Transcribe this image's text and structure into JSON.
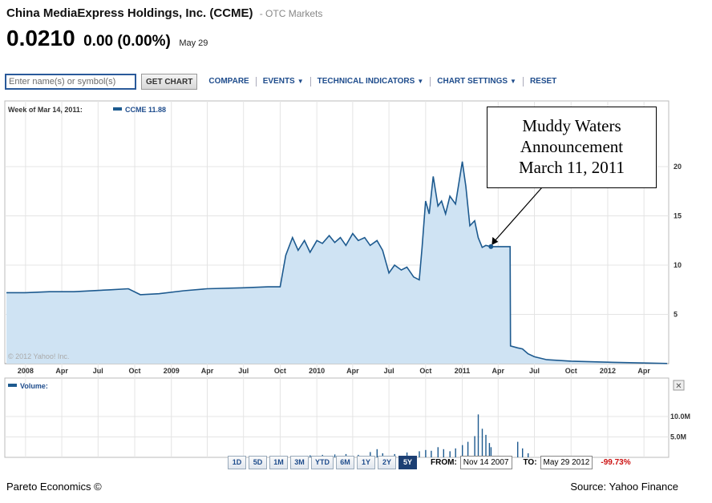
{
  "header": {
    "company": "China MediaExpress Holdings, Inc. (CCME)",
    "exchange": "- OTC Markets",
    "price": "0.0210",
    "change": "0.00 (0.00%)",
    "date": "May 29"
  },
  "toolbar": {
    "search_placeholder": "Enter name(s) or symbol(s)",
    "get_chart": "GET CHART",
    "compare": "COMPARE",
    "events": "EVENTS",
    "technical_indicators": "TECHNICAL INDICATORS",
    "chart_settings": "CHART SETTINGS",
    "reset": "RESET"
  },
  "chart": {
    "hover_label": "Week of Mar 14, 2011:",
    "legend": "CCME 11.88",
    "copyright": "© 2012 Yahoo! Inc.",
    "volume_label": "Volume:",
    "annotation": [
      "Muddy Waters",
      "Announcement",
      "March 11, 2011"
    ]
  },
  "chart_data": {
    "type": "area",
    "series": [
      {
        "name": "CCME",
        "x": [
          "2007-11-14",
          "2008-01-01",
          "2008-03-01",
          "2008-05-01",
          "2008-08-01",
          "2008-09-15",
          "2008-10-15",
          "2008-12-01",
          "2009-02-01",
          "2009-04-01",
          "2009-07-01",
          "2009-09-01",
          "2009-10-01",
          "2009-10-15",
          "2009-11-01",
          "2009-11-15",
          "2009-12-01",
          "2009-12-15",
          "2010-01-01",
          "2010-01-15",
          "2010-02-01",
          "2010-02-15",
          "2010-03-01",
          "2010-03-15",
          "2010-04-01",
          "2010-04-15",
          "2010-05-01",
          "2010-05-15",
          "2010-06-01",
          "2010-06-15",
          "2010-07-01",
          "2010-07-15",
          "2010-08-01",
          "2010-08-15",
          "2010-09-01",
          "2010-09-15",
          "2010-09-22",
          "2010-10-01",
          "2010-10-10",
          "2010-10-20",
          "2010-11-01",
          "2010-11-10",
          "2010-11-20",
          "2010-12-01",
          "2010-12-15",
          "2011-01-01",
          "2011-01-10",
          "2011-01-20",
          "2011-02-01",
          "2011-02-10",
          "2011-02-20",
          "2011-03-01",
          "2011-03-14",
          "2011-04-01",
          "2011-05-01",
          "2011-05-02",
          "2011-05-20",
          "2011-06-01",
          "2011-06-15",
          "2011-07-01",
          "2011-08-01",
          "2011-10-01",
          "2012-01-01",
          "2012-05-29"
        ],
        "values": [
          7.2,
          7.2,
          7.3,
          7.3,
          7.5,
          7.6,
          7.0,
          7.1,
          7.4,
          7.6,
          7.7,
          7.8,
          7.8,
          11.0,
          12.8,
          11.5,
          12.5,
          11.3,
          12.5,
          12.2,
          13.0,
          12.3,
          12.8,
          12.0,
          13.2,
          12.5,
          12.8,
          12.0,
          12.5,
          11.5,
          9.2,
          10.0,
          9.5,
          9.8,
          8.8,
          8.5,
          11.8,
          16.5,
          15.2,
          19.0,
          16.0,
          16.5,
          15.2,
          17.0,
          16.2,
          20.5,
          18.0,
          14.0,
          14.5,
          12.8,
          11.8,
          12.0,
          11.88,
          11.88,
          11.88,
          1.8,
          1.6,
          1.5,
          1.0,
          0.7,
          0.4,
          0.25,
          0.15,
          0.02
        ]
      }
    ],
    "x_ticks": [
      "2008",
      "Apr",
      "Jul",
      "Oct",
      "2009",
      "Apr",
      "Jul",
      "Oct",
      "2010",
      "Apr",
      "Jul",
      "Oct",
      "2011",
      "Apr",
      "Jul",
      "Oct",
      "2012",
      "Apr"
    ],
    "y_ticks": [
      "5",
      "10",
      "15",
      "20"
    ],
    "ylim": [
      0,
      26
    ],
    "volume": {
      "y_ticks": [
        "5.0M",
        "10.0M"
      ],
      "bars": [
        {
          "x": "2009-10-15",
          "v": 0.3
        },
        {
          "x": "2009-11-15",
          "v": 0.4
        },
        {
          "x": "2009-12-15",
          "v": 0.5
        },
        {
          "x": "2010-01-15",
          "v": 0.6
        },
        {
          "x": "2010-02-15",
          "v": 0.7
        },
        {
          "x": "2010-03-15",
          "v": 0.8
        },
        {
          "x": "2010-04-15",
          "v": 0.6
        },
        {
          "x": "2010-05-15",
          "v": 1.3
        },
        {
          "x": "2010-06-01",
          "v": 2.0
        },
        {
          "x": "2010-06-15",
          "v": 1.0
        },
        {
          "x": "2010-07-15",
          "v": 0.8
        },
        {
          "x": "2010-08-15",
          "v": 1.2
        },
        {
          "x": "2010-09-15",
          "v": 1.5
        },
        {
          "x": "2010-10-01",
          "v": 1.8
        },
        {
          "x": "2010-10-15",
          "v": 1.6
        },
        {
          "x": "2010-11-01",
          "v": 2.5
        },
        {
          "x": "2010-11-15",
          "v": 2.0
        },
        {
          "x": "2010-12-01",
          "v": 1.5
        },
        {
          "x": "2010-12-15",
          "v": 2.2
        },
        {
          "x": "2011-01-01",
          "v": 3.0
        },
        {
          "x": "2011-01-15",
          "v": 3.8
        },
        {
          "x": "2011-02-01",
          "v": 5.2
        },
        {
          "x": "2011-02-10",
          "v": 10.5
        },
        {
          "x": "2011-02-20",
          "v": 7.0
        },
        {
          "x": "2011-03-01",
          "v": 5.5
        },
        {
          "x": "2011-03-10",
          "v": 3.5
        },
        {
          "x": "2011-03-14",
          "v": 2.5
        },
        {
          "x": "2011-05-20",
          "v": 3.8
        },
        {
          "x": "2011-06-01",
          "v": 2.2
        },
        {
          "x": "2011-06-15",
          "v": 1.0
        }
      ]
    }
  },
  "range": {
    "buttons": [
      "1D",
      "5D",
      "1M",
      "3M",
      "YTD",
      "6M",
      "1Y",
      "2Y",
      "5Y"
    ],
    "active": "5Y",
    "from_label": "FROM:",
    "from": "Nov 14 2007",
    "to_label": "TO:",
    "to": "May 29 2012",
    "pct": "-99.73%"
  },
  "footer": {
    "left": "Pareto Economics ©",
    "right": "Source: Yahoo Finance"
  },
  "colors": {
    "line": "#1d5a8f",
    "fill": "#cfe3f3",
    "link": "#1e4c8c",
    "negative": "#cc1111"
  }
}
